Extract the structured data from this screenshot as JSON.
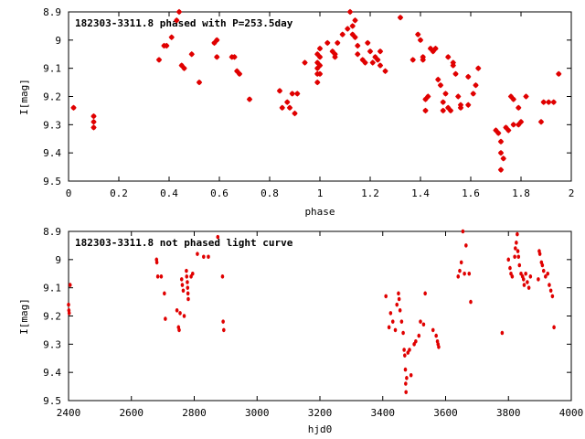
{
  "chart_data": [
    {
      "type": "scatter",
      "title": "182303-3311.8 phased with P=253.5day",
      "xlabel": "phase",
      "ylabel": "I[mag]",
      "xlim": [
        0,
        2
      ],
      "ylim": [
        8.9,
        9.5
      ],
      "y_inverted": true,
      "xticks": [
        0,
        0.2,
        0.4,
        0.6,
        0.8,
        1,
        1.2,
        1.4,
        1.6,
        1.8,
        2
      ],
      "xtick_labels": [
        "0",
        "0.2",
        "0.4",
        "0.6",
        "0.8",
        "1",
        "1.2",
        "1.4",
        "1.6",
        "1.8",
        "2"
      ],
      "yticks": [
        8.9,
        9.0,
        9.1,
        9.2,
        9.3,
        9.4,
        9.5
      ],
      "ytick_labels": [
        "8.9",
        "9",
        "9.1",
        "9.2",
        "9.3",
        "9.4",
        "9.5"
      ],
      "grid": false,
      "marker_color": "#e00000",
      "marker": "star",
      "series": [
        {
          "points": [
            [
              0.02,
              9.24
            ],
            [
              0.1,
              9.27
            ],
            [
              0.1,
              9.29
            ],
            [
              0.1,
              9.31
            ],
            [
              0.36,
              9.07
            ],
            [
              0.38,
              9.02
            ],
            [
              0.39,
              9.02
            ],
            [
              0.41,
              8.99
            ],
            [
              0.43,
              8.93
            ],
            [
              0.44,
              8.9
            ],
            [
              0.45,
              9.09
            ],
            [
              0.46,
              9.1
            ],
            [
              0.49,
              9.05
            ],
            [
              0.52,
              9.15
            ],
            [
              0.58,
              9.01
            ],
            [
              0.59,
              9.06
            ],
            [
              0.59,
              9.0
            ],
            [
              0.65,
              9.06
            ],
            [
              0.66,
              9.06
            ],
            [
              0.67,
              9.11
            ],
            [
              0.68,
              9.12
            ],
            [
              0.72,
              9.21
            ],
            [
              0.84,
              9.18
            ],
            [
              0.85,
              9.24
            ],
            [
              0.87,
              9.22
            ],
            [
              0.88,
              9.24
            ],
            [
              0.89,
              9.19
            ],
            [
              0.9,
              9.26
            ],
            [
              0.91,
              9.19
            ],
            [
              0.94,
              9.08
            ],
            [
              0.99,
              9.05
            ],
            [
              0.99,
              9.08
            ],
            [
              0.99,
              9.1
            ],
            [
              0.99,
              9.12
            ],
            [
              0.99,
              9.15
            ],
            [
              1.0,
              9.03
            ],
            [
              1.0,
              9.06
            ],
            [
              1.0,
              9.09
            ],
            [
              1.0,
              9.12
            ],
            [
              1.03,
              9.01
            ],
            [
              1.05,
              9.04
            ],
            [
              1.06,
              9.06
            ],
            [
              1.06,
              9.05
            ],
            [
              1.07,
              9.01
            ],
            [
              1.09,
              8.98
            ],
            [
              1.11,
              8.96
            ],
            [
              1.12,
              8.9
            ],
            [
              1.13,
              8.95
            ],
            [
              1.13,
              8.98
            ],
            [
              1.14,
              8.93
            ],
            [
              1.14,
              8.99
            ],
            [
              1.15,
              9.02
            ],
            [
              1.15,
              9.05
            ],
            [
              1.17,
              9.07
            ],
            [
              1.18,
              9.08
            ],
            [
              1.19,
              9.01
            ],
            [
              1.2,
              9.04
            ],
            [
              1.21,
              9.08
            ],
            [
              1.22,
              9.06
            ],
            [
              1.23,
              9.07
            ],
            [
              1.24,
              9.09
            ],
            [
              1.24,
              9.04
            ],
            [
              1.26,
              9.11
            ],
            [
              1.32,
              8.92
            ],
            [
              1.37,
              9.07
            ],
            [
              1.39,
              8.98
            ],
            [
              1.4,
              9.0
            ],
            [
              1.41,
              9.07
            ],
            [
              1.41,
              9.06
            ],
            [
              1.42,
              9.21
            ],
            [
              1.42,
              9.25
            ],
            [
              1.43,
              9.2
            ],
            [
              1.44,
              9.03
            ],
            [
              1.45,
              9.04
            ],
            [
              1.46,
              9.03
            ],
            [
              1.47,
              9.14
            ],
            [
              1.48,
              9.16
            ],
            [
              1.49,
              9.22
            ],
            [
              1.49,
              9.25
            ],
            [
              1.5,
              9.19
            ],
            [
              1.51,
              9.24
            ],
            [
              1.51,
              9.06
            ],
            [
              1.52,
              9.25
            ],
            [
              1.53,
              9.08
            ],
            [
              1.53,
              9.09
            ],
            [
              1.54,
              9.12
            ],
            [
              1.55,
              9.2
            ],
            [
              1.56,
              9.23
            ],
            [
              1.56,
              9.24
            ],
            [
              1.59,
              9.13
            ],
            [
              1.59,
              9.23
            ],
            [
              1.61,
              9.19
            ],
            [
              1.62,
              9.16
            ],
            [
              1.63,
              9.1
            ],
            [
              1.7,
              9.32
            ],
            [
              1.71,
              9.33
            ],
            [
              1.72,
              9.36
            ],
            [
              1.72,
              9.4
            ],
            [
              1.72,
              9.46
            ],
            [
              1.73,
              9.42
            ],
            [
              1.74,
              9.31
            ],
            [
              1.75,
              9.32
            ],
            [
              1.77,
              9.3
            ],
            [
              1.79,
              9.3
            ],
            [
              1.8,
              9.29
            ],
            [
              1.76,
              9.2
            ],
            [
              1.77,
              9.21
            ],
            [
              1.79,
              9.24
            ],
            [
              1.82,
              9.2
            ],
            [
              1.88,
              9.29
            ],
            [
              1.89,
              9.22
            ],
            [
              1.91,
              9.22
            ],
            [
              1.93,
              9.22
            ],
            [
              1.95,
              9.12
            ]
          ]
        }
      ]
    },
    {
      "type": "scatter",
      "title": "182303-3311.8 not phased light curve",
      "xlabel": "hjd0",
      "ylabel": "I[mag]",
      "xlim": [
        2400,
        4000
      ],
      "ylim": [
        8.9,
        9.5
      ],
      "y_inverted": true,
      "xticks": [
        2400,
        2600,
        2800,
        3000,
        3200,
        3400,
        3600,
        3800,
        4000
      ],
      "xtick_labels": [
        "2400",
        "2600",
        "2800",
        "3000",
        "3200",
        "3400",
        "3600",
        "3800",
        "4000"
      ],
      "yticks": [
        8.9,
        9.0,
        9.1,
        9.2,
        9.3,
        9.4,
        9.5
      ],
      "ytick_labels": [
        "8.9",
        "9",
        "9.1",
        "9.2",
        "9.3",
        "9.4",
        "9.5"
      ],
      "grid": false,
      "marker_color": "#e00000",
      "marker": "dot",
      "series": [
        {
          "points": [
            [
              2400,
              9.16
            ],
            [
              2401,
              9.18
            ],
            [
              2402,
              9.19
            ],
            [
              2405,
              9.09
            ],
            [
              2680,
              9.0
            ],
            [
              2681,
              9.01
            ],
            [
              2684,
              9.06
            ],
            [
              2695,
              9.06
            ],
            [
              2705,
              9.12
            ],
            [
              2708,
              9.21
            ],
            [
              2745,
              9.18
            ],
            [
              2750,
              9.24
            ],
            [
              2752,
              9.25
            ],
            [
              2755,
              9.19
            ],
            [
              2760,
              9.07
            ],
            [
              2762,
              9.09
            ],
            [
              2765,
              9.11
            ],
            [
              2768,
              9.2
            ],
            [
              2775,
              9.04
            ],
            [
              2776,
              9.06
            ],
            [
              2778,
              9.08
            ],
            [
              2779,
              9.1
            ],
            [
              2780,
              9.12
            ],
            [
              2781,
              9.14
            ],
            [
              2790,
              9.06
            ],
            [
              2795,
              9.05
            ],
            [
              2810,
              8.98
            ],
            [
              2830,
              8.99
            ],
            [
              2845,
              8.99
            ],
            [
              2875,
              8.92
            ],
            [
              2890,
              9.06
            ],
            [
              2892,
              9.22
            ],
            [
              2894,
              9.25
            ],
            [
              3410,
              9.13
            ],
            [
              3420,
              9.24
            ],
            [
              3425,
              9.19
            ],
            [
              3432,
              9.22
            ],
            [
              3440,
              9.25
            ],
            [
              3445,
              9.16
            ],
            [
              3450,
              9.12
            ],
            [
              3452,
              9.14
            ],
            [
              3455,
              9.18
            ],
            [
              3460,
              9.22
            ],
            [
              3465,
              9.26
            ],
            [
              3468,
              9.32
            ],
            [
              3470,
              9.34
            ],
            [
              3472,
              9.39
            ],
            [
              3473,
              9.44
            ],
            [
              3474,
              9.47
            ],
            [
              3476,
              9.42
            ],
            [
              3480,
              9.33
            ],
            [
              3485,
              9.32
            ],
            [
              3490,
              9.41
            ],
            [
              3500,
              9.3
            ],
            [
              3505,
              9.29
            ],
            [
              3515,
              9.27
            ],
            [
              3520,
              9.22
            ],
            [
              3530,
              9.23
            ],
            [
              3535,
              9.12
            ],
            [
              3560,
              9.25
            ],
            [
              3570,
              9.27
            ],
            [
              3574,
              9.29
            ],
            [
              3576,
              9.3
            ],
            [
              3578,
              9.31
            ],
            [
              3640,
              9.06
            ],
            [
              3645,
              9.04
            ],
            [
              3650,
              9.01
            ],
            [
              3655,
              8.9
            ],
            [
              3660,
              9.05
            ],
            [
              3665,
              8.95
            ],
            [
              3675,
              9.05
            ],
            [
              3680,
              9.15
            ],
            [
              3780,
              9.26
            ],
            [
              3800,
              9.0
            ],
            [
              3805,
              9.03
            ],
            [
              3808,
              9.05
            ],
            [
              3812,
              9.06
            ],
            [
              3820,
              8.99
            ],
            [
              3822,
              8.96
            ],
            [
              3825,
              8.94
            ],
            [
              3828,
              8.91
            ],
            [
              3830,
              8.97
            ],
            [
              3832,
              8.99
            ],
            [
              3835,
              9.02
            ],
            [
              3840,
              9.05
            ],
            [
              3845,
              9.06
            ],
            [
              3848,
              9.07
            ],
            [
              3850,
              9.09
            ],
            [
              3855,
              9.05
            ],
            [
              3860,
              9.08
            ],
            [
              3865,
              9.1
            ],
            [
              3870,
              9.06
            ],
            [
              3895,
              9.07
            ],
            [
              3898,
              8.97
            ],
            [
              3900,
              8.98
            ],
            [
              3905,
              9.01
            ],
            [
              3908,
              9.02
            ],
            [
              3912,
              9.04
            ],
            [
              3918,
              9.06
            ],
            [
              3925,
              9.05
            ],
            [
              3930,
              9.09
            ],
            [
              3935,
              9.11
            ],
            [
              3940,
              9.13
            ],
            [
              3945,
              9.24
            ]
          ]
        }
      ]
    }
  ]
}
